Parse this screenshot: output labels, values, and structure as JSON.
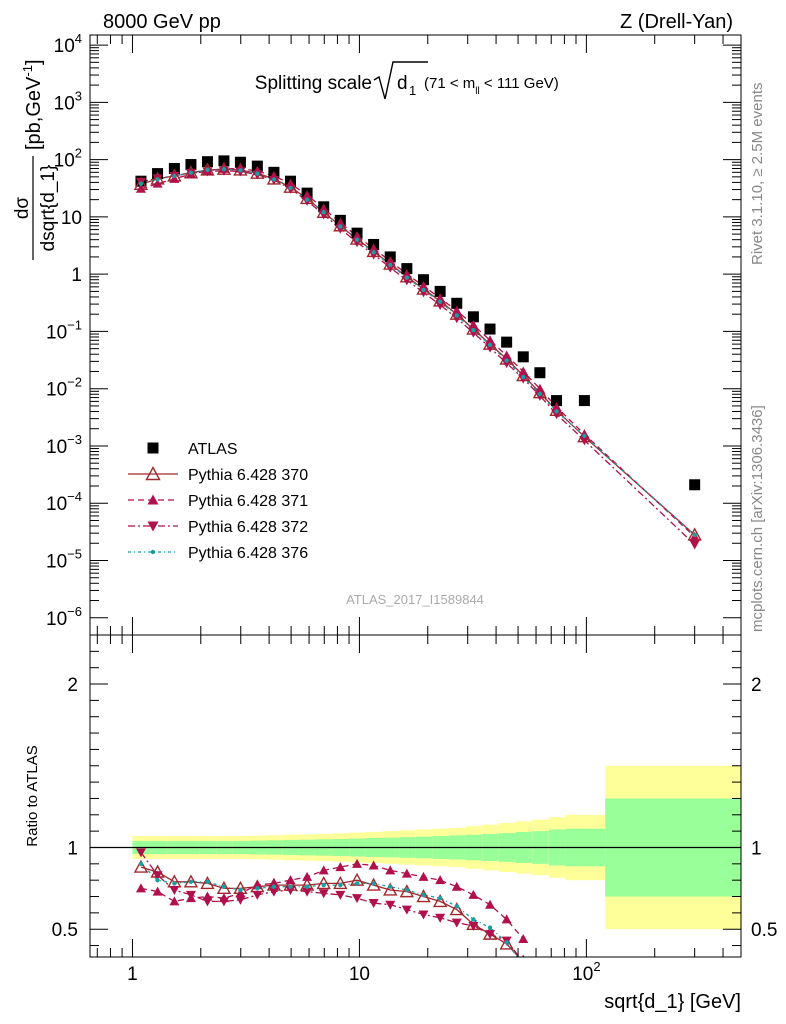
{
  "header": {
    "left": "8000 GeV pp",
    "right": "Z (Drell-Yan)"
  },
  "side_labels": {
    "rivet": "Rivet 3.1.10, ≥ 2.5M events",
    "mcplots": "mcplots.cern.ch [arXiv:1306.3436]"
  },
  "watermark": "ATLAS_2017_I1589844",
  "chart_data": [
    {
      "type": "scatter",
      "title": "Splitting scale √d₁ (71 < m_ll < 111 GeV)",
      "title_main": "Splitting scale",
      "title_sym": "d",
      "title_sym_sub": "1",
      "title_range_a": "(71 < m",
      "title_range_sub": "ll",
      "title_range_b": " < 111 GeV)",
      "ylabel": "dσ/dsqrt{d_1} [pb,GeV⁻¹]",
      "ylabel_num": "dσ",
      "ylabel_den": "dsqrt{d_1}",
      "ylabel_unit": "[pb,GeV",
      "ylabel_unit_exp": "-1",
      "ylabel_unit_close": "]",
      "x_scale": "log",
      "y_scale": "log",
      "xlim": [
        0.65,
        480
      ],
      "ylim": [
        5e-07,
        15000
      ],
      "x_ticks": [
        "1",
        "10",
        "10^2"
      ],
      "y_ticks": [
        "10^-6",
        "10^-5",
        "10^-4",
        "10^-3",
        "10^-2",
        "10^-1",
        "1",
        "10",
        "10^2",
        "10^3",
        "10^4"
      ],
      "legend_position": "lower-left",
      "x": [
        1.09,
        1.29,
        1.53,
        1.81,
        2.14,
        2.53,
        2.99,
        3.55,
        4.2,
        4.97,
        5.88,
        6.96,
        8.24,
        9.76,
        11.55,
        13.67,
        16.18,
        19.16,
        22.68,
        26.85,
        31.78,
        37.62,
        44.53,
        52.71,
        62.4,
        73.87,
        98.0,
        300.0
      ],
      "series": [
        {
          "name": "ATLAS",
          "marker": "square",
          "color": "#000000",
          "values": [
            42,
            57,
            70,
            82,
            92,
            95,
            90,
            77,
            60,
            42,
            26,
            15,
            8.7,
            5.2,
            3.3,
            2.0,
            1.25,
            0.8,
            0.5,
            0.31,
            0.18,
            0.11,
            0.065,
            0.036,
            0.019,
            0.0062,
            0.0062,
            0.00021
          ]
        },
        {
          "name": "Pythia 6.428 370",
          "marker": "open-triangle",
          "line": "solid",
          "color": "#a0282c",
          "values": [
            37,
            46,
            52,
            59,
            66,
            68,
            66,
            58,
            46,
            33,
            21,
            12,
            7.0,
            4.1,
            2.5,
            1.5,
            0.9,
            0.55,
            0.34,
            0.2,
            0.11,
            0.06,
            0.033,
            0.017,
            0.0085,
            0.0042,
            0.00145,
            2.8e-05
          ]
        },
        {
          "name": "Pythia 6.428 371",
          "marker": "triangle-up",
          "line": "dashed",
          "color": "#b0104c",
          "values": [
            31,
            38,
            46,
            56,
            64,
            69,
            70,
            63,
            52,
            38,
            24,
            14,
            7.9,
            4.6,
            2.8,
            1.7,
            1.0,
            0.62,
            0.38,
            0.23,
            0.13,
            0.07,
            0.038,
            0.02,
            0.01,
            0.0048,
            0.0016,
            2.6e-05
          ]
        },
        {
          "name": "Pythia 6.428 372",
          "marker": "triangle-down",
          "line": "dashdot",
          "color": "#b0104c",
          "values": [
            41,
            47,
            52,
            58,
            62,
            64,
            62,
            55,
            44,
            31,
            19,
            11,
            6.2,
            3.6,
            2.2,
            1.3,
            0.78,
            0.48,
            0.29,
            0.17,
            0.095,
            0.052,
            0.028,
            0.015,
            0.0075,
            0.0036,
            0.00125,
            1.9e-05
          ]
        },
        {
          "name": "Pythia 6.428 376",
          "marker": "dot",
          "line": "dashdotted",
          "color": "#18a0a0",
          "values": [
            38,
            45,
            52,
            59,
            66,
            68,
            65,
            57,
            45,
            32,
            20,
            12,
            6.8,
            4.0,
            2.4,
            1.45,
            0.87,
            0.53,
            0.33,
            0.19,
            0.105,
            0.058,
            0.031,
            0.016,
            0.0081,
            0.004,
            0.0015,
            2.8e-05
          ]
        }
      ]
    },
    {
      "type": "line",
      "ylabel": "Ratio to ATLAS",
      "xlabel": "sqrt{d_1} [GeV]",
      "x_scale": "log",
      "xlim": [
        0.65,
        480
      ],
      "ylim": [
        0.33,
        2.3
      ],
      "y_ticks": [
        "0.5",
        "1",
        "2"
      ],
      "band_edges": [
        1.0,
        1.19,
        1.41,
        1.67,
        1.98,
        2.34,
        2.77,
        3.28,
        3.88,
        4.59,
        5.44,
        6.43,
        7.62,
        9.02,
        10.68,
        12.64,
        14.96,
        17.71,
        20.97,
        24.82,
        29.38,
        34.78,
        41.17,
        48.74,
        57.7,
        68.3,
        80.85,
        121.0,
        480.0
      ],
      "band_inner": [
        0.04,
        0.04,
        0.04,
        0.04,
        0.04,
        0.04,
        0.04,
        0.042,
        0.044,
        0.046,
        0.048,
        0.05,
        0.052,
        0.055,
        0.058,
        0.06,
        0.063,
        0.066,
        0.07,
        0.074,
        0.078,
        0.083,
        0.088,
        0.095,
        0.1,
        0.11,
        0.115,
        0.3
      ],
      "band_outer": [
        0.07,
        0.07,
        0.07,
        0.07,
        0.07,
        0.07,
        0.07,
        0.072,
        0.075,
        0.078,
        0.08,
        0.083,
        0.087,
        0.091,
        0.095,
        0.1,
        0.105,
        0.11,
        0.115,
        0.12,
        0.13,
        0.14,
        0.15,
        0.16,
        0.17,
        0.185,
        0.2,
        0.5
      ],
      "x": [
        1.09,
        1.29,
        1.53,
        1.81,
        2.14,
        2.53,
        2.99,
        3.55,
        4.2,
        4.97,
        5.88,
        6.96,
        8.24,
        9.76,
        11.55,
        13.67,
        16.18,
        19.16,
        22.68,
        26.85,
        31.78,
        37.62,
        44.53,
        52.71
      ],
      "series": [
        {
          "name": "Pythia 6.428 370",
          "marker": "open-triangle",
          "line": "solid",
          "color": "#a0282c",
          "values": [
            0.88,
            0.85,
            0.79,
            0.79,
            0.78,
            0.75,
            0.75,
            0.76,
            0.77,
            0.77,
            0.77,
            0.78,
            0.78,
            0.8,
            0.77,
            0.74,
            0.73,
            0.7,
            0.67,
            0.62,
            0.53,
            0.47,
            0.41,
            0.3
          ]
        },
        {
          "name": "Pythia 6.428 371",
          "marker": "triangle-up",
          "line": "dashed",
          "color": "#b0104c",
          "values": [
            0.75,
            0.73,
            0.67,
            0.69,
            0.7,
            0.69,
            0.72,
            0.77,
            0.78,
            0.8,
            0.82,
            0.86,
            0.88,
            0.9,
            0.89,
            0.86,
            0.84,
            0.82,
            0.8,
            0.76,
            0.71,
            0.65,
            0.56,
            0.44
          ]
        },
        {
          "name": "Pythia 6.428 372",
          "marker": "triangle-down",
          "line": "dashdot",
          "color": "#b0104c",
          "values": [
            0.97,
            0.83,
            0.74,
            0.71,
            0.67,
            0.67,
            0.68,
            0.71,
            0.73,
            0.74,
            0.73,
            0.72,
            0.71,
            0.69,
            0.66,
            0.65,
            0.62,
            0.59,
            0.57,
            0.54,
            0.52,
            0.47,
            0.43,
            0.3
          ]
        },
        {
          "name": "Pythia 6.428 376",
          "marker": "dot",
          "line": "dashdotted",
          "color": "#18a0a0",
          "values": [
            0.9,
            0.8,
            0.78,
            0.79,
            0.79,
            0.76,
            0.74,
            0.75,
            0.76,
            0.76,
            0.76,
            0.77,
            0.77,
            0.78,
            0.78,
            0.76,
            0.74,
            0.71,
            0.69,
            0.64,
            0.56,
            0.51,
            0.42,
            0.28
          ]
        }
      ]
    }
  ]
}
